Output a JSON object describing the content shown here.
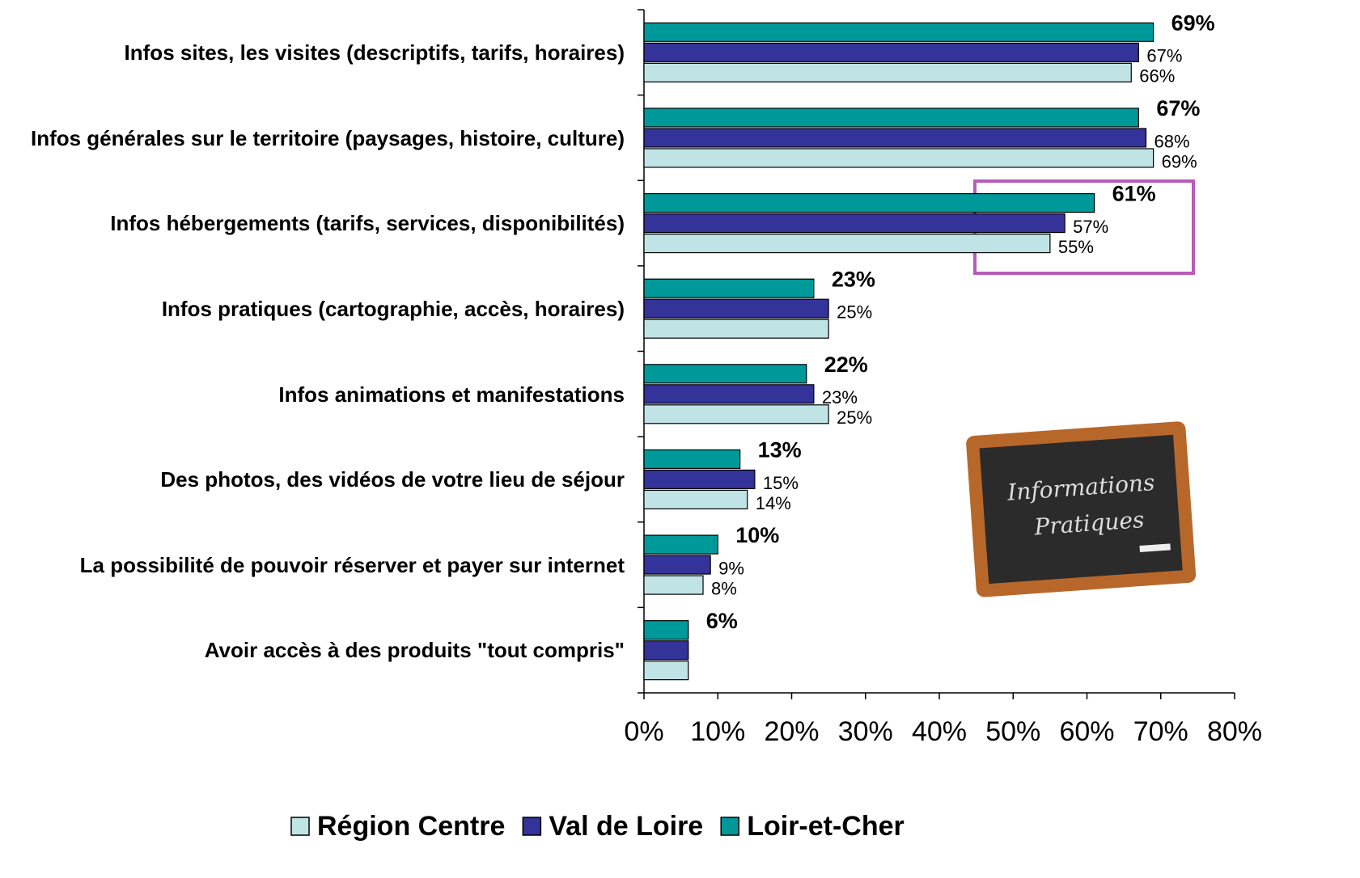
{
  "chart_data": {
    "type": "hbar",
    "categories": [
      "Infos sites, les visites (descriptifs, tarifs, horaires)",
      "Infos générales sur le territoire (paysages, histoire, culture)",
      "Infos hébergements (tarifs, services, disponibilités)",
      "Infos pratiques (cartographie,  accès, horaires)",
      "Infos animations et manifestations",
      "Des photos, des vidéos de votre lieu de séjour",
      "La possibilité de pouvoir réserver et payer sur internet",
      "Avoir accès à des produits \"tout compris\""
    ],
    "series": [
      {
        "name": "Région Centre",
        "color": "#c0e4e6",
        "values": [
          66,
          69,
          55,
          25,
          25,
          14,
          8,
          6
        ],
        "value_labels": [
          "66%",
          "69%",
          "55%",
          null,
          "25%",
          "14%",
          "8%",
          null
        ]
      },
      {
        "name": "Val de Loire",
        "color": "#333399",
        "values": [
          67,
          68,
          57,
          25,
          23,
          15,
          9,
          6
        ],
        "value_labels": [
          "67%",
          "68%",
          "57%",
          "25%",
          "23%",
          "15%",
          "9%",
          null
        ]
      },
      {
        "name": "Loir-et-Cher",
        "color": "#009999",
        "values": [
          69,
          67,
          61,
          23,
          22,
          13,
          10,
          6
        ],
        "value_labels": [
          "69%",
          "67%",
          "61%",
          "23%",
          "22%",
          "13%",
          "10%",
          "6%"
        ]
      }
    ],
    "xlim": [
      0,
      80
    ],
    "xticks": [
      {
        "value": 0,
        "label": "0%"
      },
      {
        "value": 10,
        "label": "10%"
      },
      {
        "value": 20,
        "label": "20%"
      },
      {
        "value": 30,
        "label": "30%"
      },
      {
        "value": 40,
        "label": "40%"
      },
      {
        "value": 50,
        "label": "50%"
      },
      {
        "value": 60,
        "label": "60%"
      },
      {
        "value": 70,
        "label": "70%"
      },
      {
        "value": 80,
        "label": "80%"
      }
    ],
    "legend": "bottom"
  },
  "image": {
    "lines": [
      "Informations",
      "Pratiques"
    ]
  }
}
